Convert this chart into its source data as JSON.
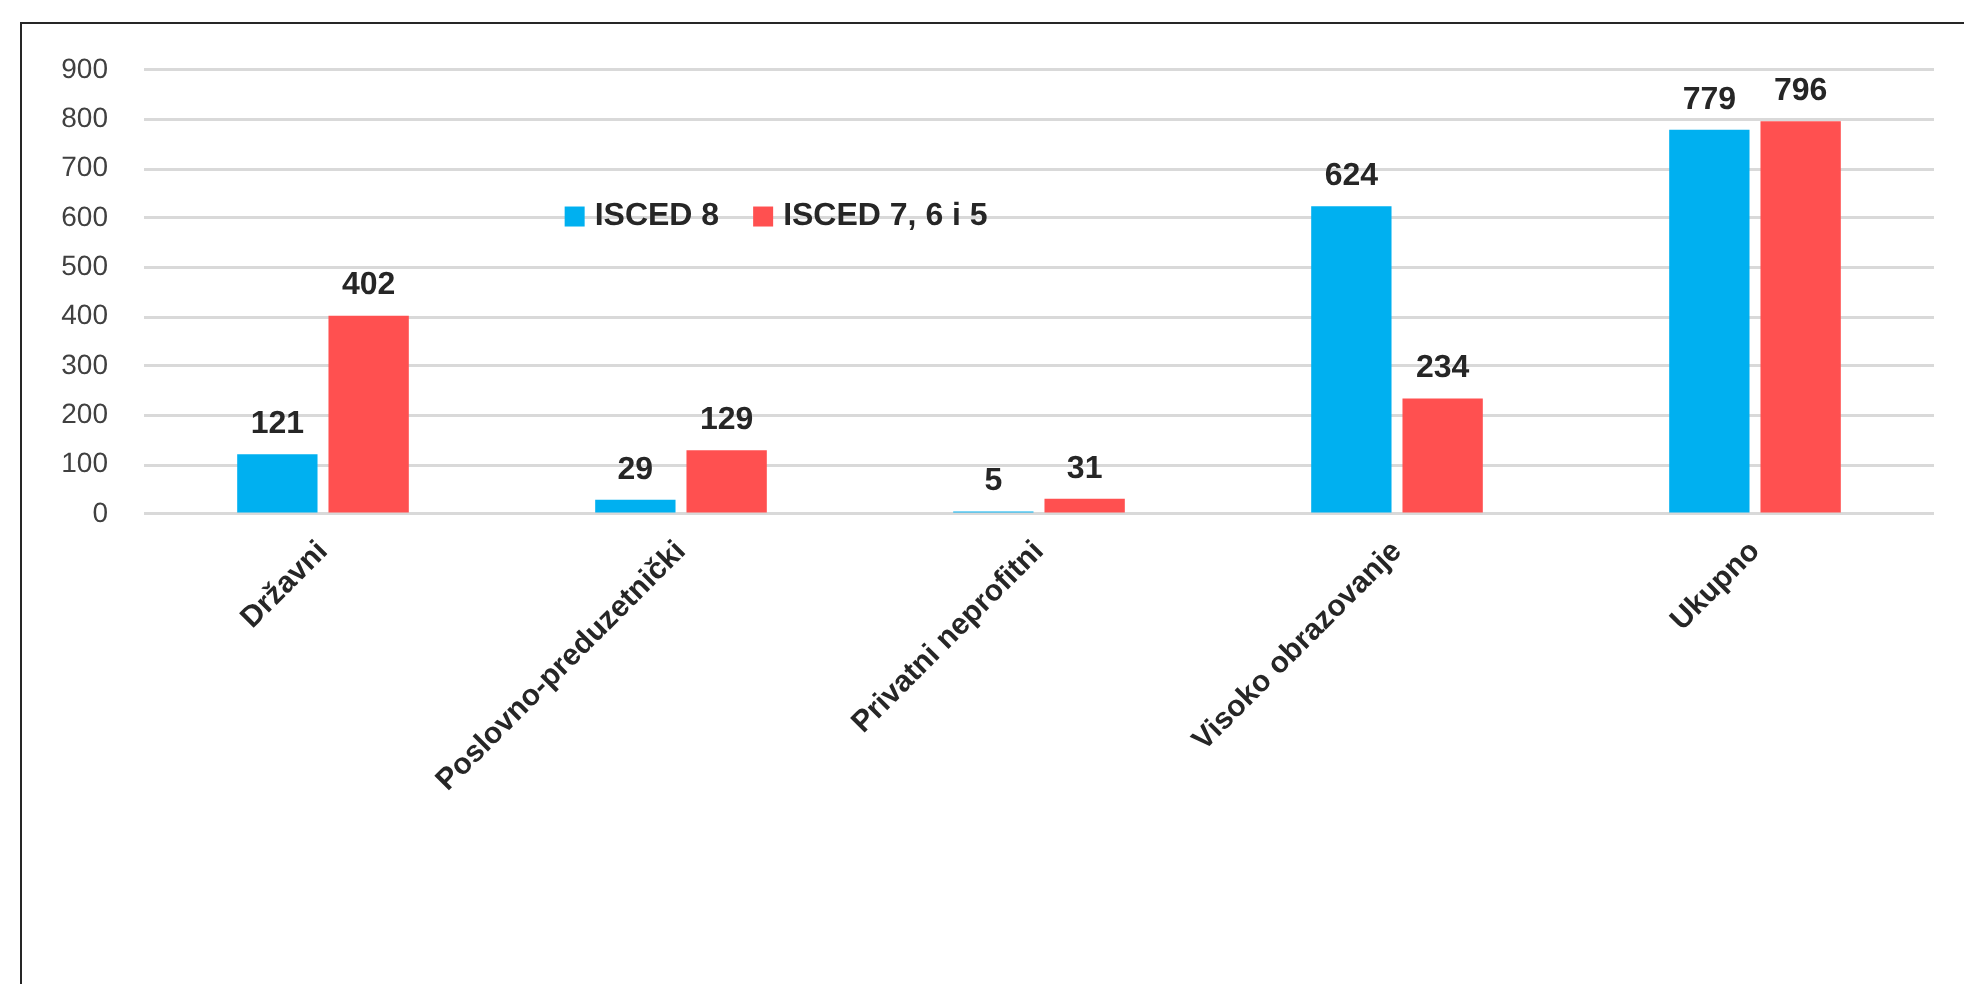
{
  "chart_data": {
    "type": "bar",
    "categories": [
      "Državni",
      "Poslovno-preduzetnički",
      "Privatni neprofitni",
      "Visoko obrazovanje",
      "Ukupno"
    ],
    "series": [
      {
        "name": "ISCED 8",
        "color": "#00b0f0",
        "values": [
          121,
          29,
          5,
          624,
          779
        ]
      },
      {
        "name": "ISCED 7, 6 i 5",
        "color": "#ff5050",
        "values": [
          402,
          129,
          31,
          234,
          796
        ]
      }
    ],
    "ylim": [
      0,
      900
    ],
    "yticks": [
      0,
      100,
      200,
      300,
      400,
      500,
      600,
      700,
      800,
      900
    ],
    "grid": "y",
    "legend": "top",
    "data_labels": true
  }
}
